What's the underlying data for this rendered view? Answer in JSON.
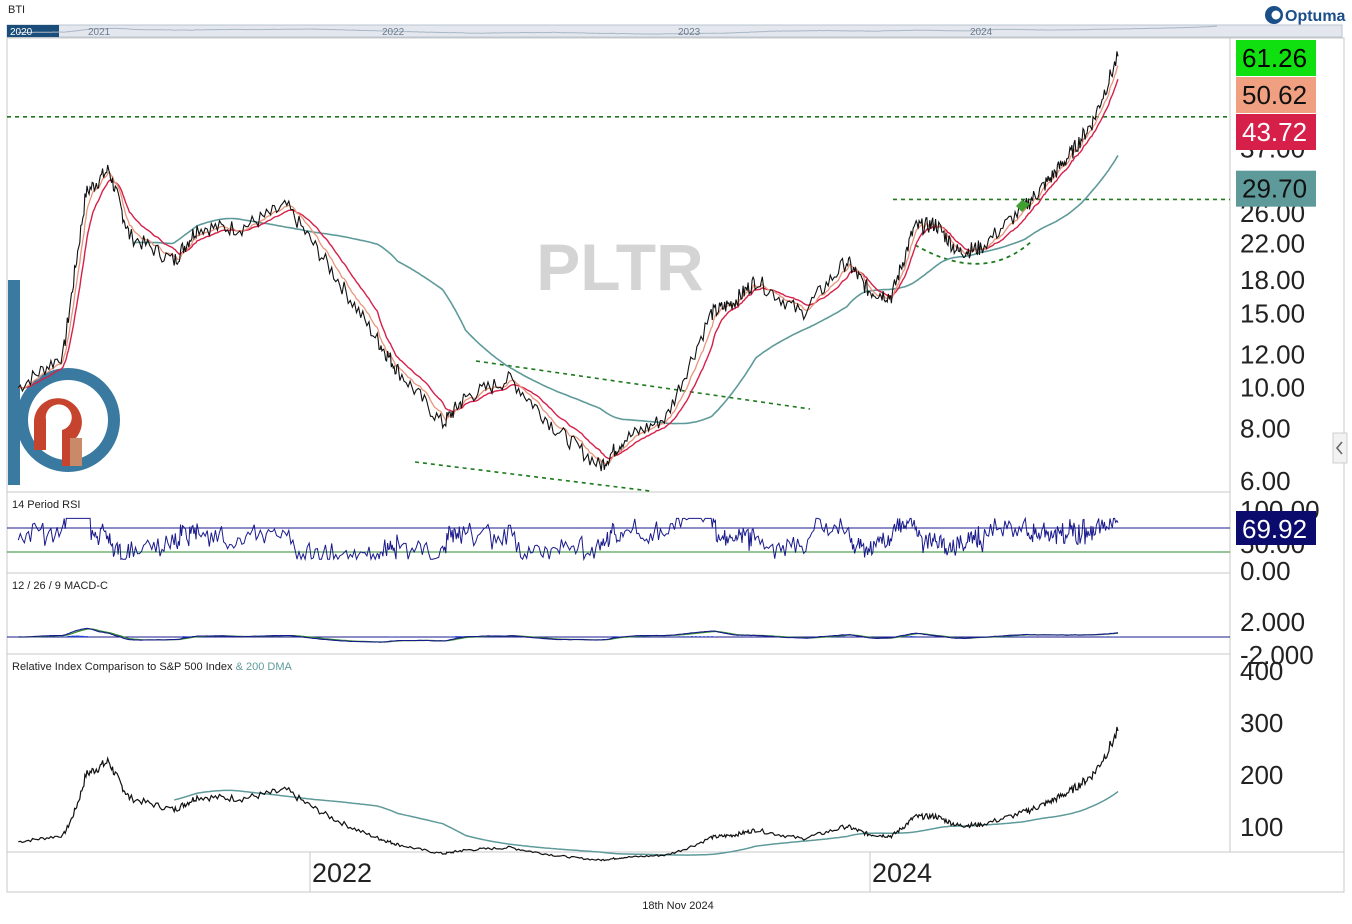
{
  "header": {
    "symbol_label": "BTI",
    "brand": "Optuma",
    "footer_date": "18th Nov 2024",
    "watermark": "PLTR",
    "scroll_years": [
      "2020",
      "2021",
      "2022",
      "2023",
      "2024"
    ]
  },
  "colors": {
    "price": "#111111",
    "ema_fast": "#e8957a",
    "ma_mid": "#d6204a",
    "ma_long": "#5f9a9a",
    "dotted": "#1d7a1d",
    "rsi_line": "#1a1a8c",
    "macd_fast": "#1a1a8c",
    "macd_slow": "#2e8b2e",
    "histogram": "#1f3fd6",
    "logo_blue": "#3a7aa0",
    "logo_red": "#c6432e"
  },
  "chart_data": [
    {
      "type": "line",
      "title": "",
      "log_scale": true,
      "ylim": [
        5.5,
        68
      ],
      "y_ticks": [
        "6.00",
        "8.00",
        "10.00",
        "12.00",
        "15.00",
        "18.00",
        "22.00",
        "26.00",
        "37.00"
      ],
      "x_ticks": [
        "2022",
        "2024"
      ],
      "price_series": [
        [
          "2020-10",
          10.0
        ],
        [
          "2020-12",
          12.0
        ],
        [
          "2021-01",
          29.0
        ],
        [
          "2021-02",
          33.0
        ],
        [
          "2021-03",
          23.0
        ],
        [
          "2021-05",
          20.0
        ],
        [
          "2021-06",
          24.0
        ],
        [
          "2021-08",
          24.0
        ],
        [
          "2021-10",
          27.0
        ],
        [
          "2021-12",
          19.0
        ],
        [
          "2022-02",
          13.0
        ],
        [
          "2022-03",
          11.0
        ],
        [
          "2022-05",
          8.2
        ],
        [
          "2022-06",
          9.5
        ],
        [
          "2022-08",
          10.5
        ],
        [
          "2022-10",
          8.0
        ],
        [
          "2022-12",
          6.5
        ],
        [
          "2023-01",
          7.5
        ],
        [
          "2023-03",
          8.5
        ],
        [
          "2023-05",
          15.0
        ],
        [
          "2023-06",
          16.0
        ],
        [
          "2023-07",
          18.0
        ],
        [
          "2023-09",
          15.0
        ],
        [
          "2023-11",
          20.0
        ],
        [
          "2023-12",
          17.0
        ],
        [
          "2024-01",
          16.5
        ],
        [
          "2024-02",
          24.0
        ],
        [
          "2024-03",
          24.5
        ],
        [
          "2024-04",
          21.0
        ],
        [
          "2024-05",
          21.5
        ],
        [
          "2024-07",
          27.0
        ],
        [
          "2024-08",
          31.0
        ],
        [
          "2024-09",
          36.0
        ],
        [
          "2024-10",
          43.0
        ],
        [
          "2024-11",
          61.26
        ]
      ],
      "series_last_values": [
        {
          "value": "61.26",
          "bg": "#10e010",
          "fg": "#000000"
        },
        {
          "value": "50.62",
          "bg": "#f0a080",
          "fg": "#111111"
        },
        {
          "value": "43.72",
          "bg": "#d6204a",
          "fg": "#ffffff"
        },
        {
          "value": "29.70",
          "bg": "#5f9a9a",
          "fg": "#111111"
        }
      ],
      "horizontal_levels": [
        44.0,
        28.0
      ]
    },
    {
      "type": "line",
      "title": "14 Period RSI",
      "ylim": [
        0,
        100
      ],
      "y_ticks": [
        "100.00",
        "50.00",
        "0.00"
      ],
      "reference_lines": [
        70,
        30
      ],
      "last_value": {
        "value": "69.92",
        "bg": "#0b0b6e",
        "fg": "#ffffff"
      }
    },
    {
      "type": "line",
      "title": "12 / 26 / 9 MACD-C",
      "y_ticks": [
        "2.000",
        "-2.000"
      ]
    },
    {
      "type": "line",
      "title": "Relative Index Comparison to S&P 500 Index",
      "subtitle": "& 200 DMA",
      "ylim": [
        50,
        410
      ],
      "y_ticks": [
        "400",
        "300",
        "200",
        "100"
      ]
    }
  ]
}
